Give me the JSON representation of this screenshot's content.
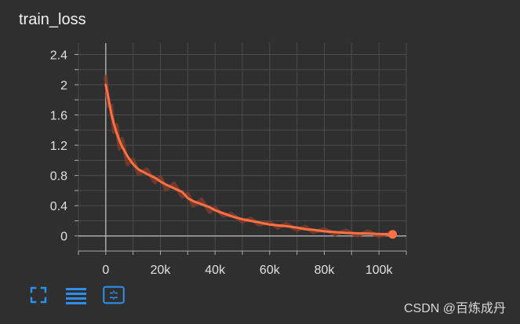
{
  "chart_title": "train_loss",
  "watermark": "CSDN @百炼成丹",
  "toolbar": {
    "items": [
      {
        "name": "fullscreen-icon"
      },
      {
        "name": "data-table-icon"
      },
      {
        "name": "fit-domain-icon"
      }
    ],
    "icon_color": "#2f8eea"
  },
  "chart_data": {
    "type": "line",
    "title": "train_loss",
    "xlabel": "",
    "ylabel": "",
    "xlim": [
      -10000,
      110000
    ],
    "ylim": [
      -0.2,
      2.55
    ],
    "xticks": [
      0,
      20000,
      40000,
      60000,
      80000,
      100000
    ],
    "xtick_labels": [
      "0",
      "20k",
      "40k",
      "60k",
      "80k",
      "100k"
    ],
    "yticks": [
      0,
      0.4,
      0.8,
      1.2,
      1.6,
      2,
      2.4
    ],
    "ytick_labels": [
      "0",
      "0.4",
      "0.8",
      "1.2",
      "1.6",
      "2",
      "2.4"
    ],
    "grid": true,
    "line_color": "#ff7043",
    "raw_color": "#7a3b2b",
    "series": [
      {
        "x": [
          0,
          1000,
          2000,
          3000,
          4000,
          5000,
          6000,
          8000,
          10000,
          12000,
          15000,
          18000,
          20000,
          22000,
          25000,
          28000,
          30000,
          32000,
          35000,
          38000,
          40000,
          43000,
          46000,
          50000,
          53000,
          56000,
          60000,
          63000,
          66000,
          70000,
          73000,
          76000,
          80000,
          84000,
          88000,
          92000,
          96000,
          100000,
          105000
        ],
        "values": [
          2.0,
          1.82,
          1.62,
          1.48,
          1.36,
          1.26,
          1.18,
          1.05,
          0.95,
          0.88,
          0.82,
          0.77,
          0.72,
          0.68,
          0.63,
          0.58,
          0.5,
          0.46,
          0.42,
          0.38,
          0.34,
          0.3,
          0.26,
          0.22,
          0.2,
          0.18,
          0.15,
          0.14,
          0.13,
          0.11,
          0.09,
          0.08,
          0.06,
          0.05,
          0.04,
          0.035,
          0.03,
          0.025,
          0.02
        ]
      }
    ]
  }
}
